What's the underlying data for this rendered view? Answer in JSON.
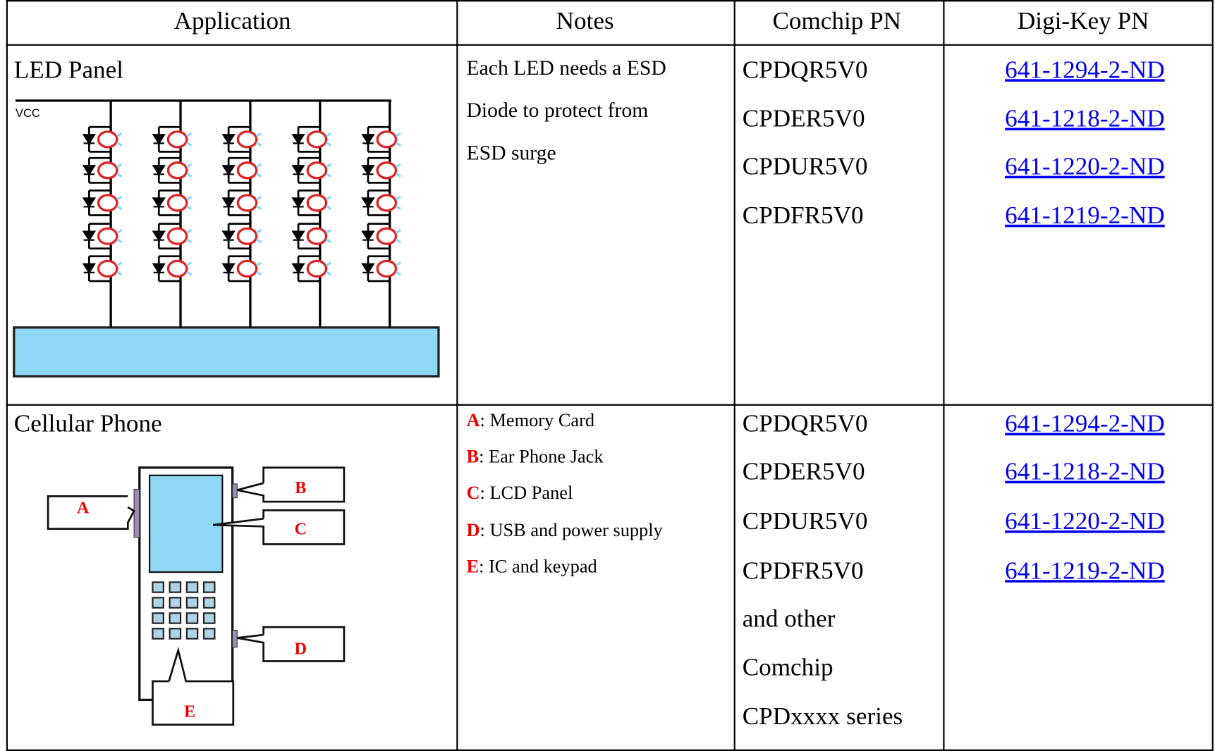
{
  "table": {
    "header": [
      "Application",
      "Notes",
      "Comchip PN",
      "Digi-Key PN"
    ],
    "rows": [
      {
        "application": "LED Panel",
        "diagram": {
          "vcc_label": "VCC"
        },
        "notes": [
          "Each LED needs a ESD",
          "Diode to protect from",
          "ESD surge"
        ],
        "comchip_pn": [
          "CPDQR5V0",
          "CPDER5V0",
          "CPDUR5V0",
          "CPDFR5V0"
        ],
        "digikey_pn": [
          "641-1294-2-ND",
          "641-1218-2-ND",
          "641-1220-2-ND",
          "641-1219-2-ND"
        ]
      },
      {
        "application": "Cellular Phone",
        "notes": [
          {
            "key": "A",
            "text": ": Memory Card"
          },
          {
            "key": "B",
            "text": ": Ear Phone Jack"
          },
          {
            "key": "C",
            "text": ": LCD Panel"
          },
          {
            "key": "D",
            "text": ": USB and power supply"
          },
          {
            "key": "E",
            "text": ": IC and keypad"
          }
        ],
        "comchip_pn": [
          "CPDQR5V0",
          "CPDER5V0",
          "CPDUR5V0",
          "CPDFR5V0",
          "and other",
          "Comchip",
          "CPDxxxx series"
        ],
        "digikey_pn": [
          "641-1294-2-ND",
          "641-1218-2-ND",
          "641-1220-2-ND",
          "641-1219-2-ND"
        ]
      }
    ]
  }
}
